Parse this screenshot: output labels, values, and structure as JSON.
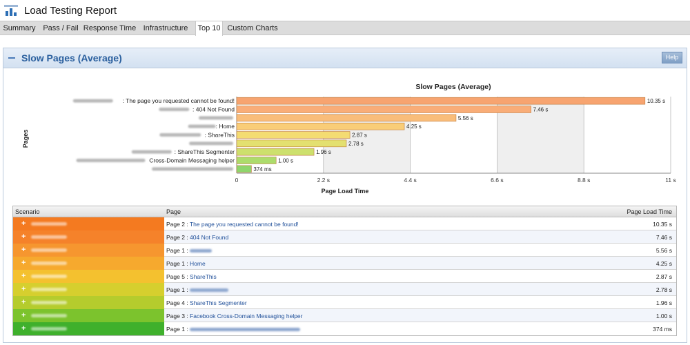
{
  "app": {
    "title": "Load Testing Report"
  },
  "tabs": [
    {
      "label": "Summary",
      "active": false
    },
    {
      "label": "Pass / Fail",
      "active": false
    },
    {
      "label": "Response Time",
      "active": false
    },
    {
      "label": "Infrastructure",
      "active": false
    },
    {
      "label": "Top 10",
      "active": true
    },
    {
      "label": "Custom Charts",
      "active": false
    }
  ],
  "panel": {
    "title": "Slow Pages (Average)",
    "help_label": "Help"
  },
  "chart_data": {
    "type": "bar",
    "orientation": "horizontal",
    "title": "Slow Pages (Average)",
    "xlabel": "Page Load Time",
    "ylabel": "Pages",
    "xlim": [
      0,
      11
    ],
    "x_ticks": [
      "0",
      "2.2 s",
      "4.4 s",
      "6.6 s",
      "8.8 s",
      "11 s"
    ],
    "grid": true,
    "categories": [
      ": The page you requested cannot be found!",
      ": 404 Not Found",
      "",
      ": Home",
      ": ShareThis",
      "",
      ": ShareThis Segmenter",
      " Cross-Domain Messaging helper",
      ""
    ],
    "values": [
      10.35,
      7.46,
      5.56,
      4.25,
      2.87,
      2.78,
      1.96,
      1.0,
      0.374
    ],
    "value_labels": [
      "10.35 s",
      "7.46 s",
      "5.56 s",
      "4.25 s",
      "2.87 s",
      "2.78 s",
      "1.96 s",
      "1.00 s",
      "374 ms"
    ],
    "bar_colors": [
      "#f7a470",
      "#f9ad78",
      "#f9bd7a",
      "#f9cd78",
      "#f4dc72",
      "#e3e070",
      "#cde06d",
      "#acdc6c",
      "#8ed56c"
    ],
    "band_colors": [
      "#ffffff",
      "#efefef"
    ]
  },
  "table": {
    "headers": {
      "scenario": "Scenario",
      "page": "Page",
      "time": "Page Load Time"
    },
    "rows": [
      {
        "page_prefix": "Page 2 :",
        "page_link": "The page you requested cannot be found!",
        "time": "10.35 s",
        "color": "#f47a20"
      },
      {
        "page_prefix": "Page 2 :",
        "page_link": "404 Not Found",
        "time": "7.46 s",
        "color": "#f5822a"
      },
      {
        "page_prefix": "Page 1 :",
        "page_link": "",
        "time": "5.56 s",
        "color": "#f6962f"
      },
      {
        "page_prefix": "Page 1 :",
        "page_link": "Home",
        "time": "4.25 s",
        "color": "#f6a92e"
      },
      {
        "page_prefix": "Page 5 :",
        "page_link": "ShareThis",
        "time": "2.87 s",
        "color": "#f4c12f"
      },
      {
        "page_prefix": "Page 1 :",
        "page_link": "",
        "time": "2.78 s",
        "color": "#d6cf2e"
      },
      {
        "page_prefix": "Page 4 :",
        "page_link": "ShareThis Segmenter",
        "time": "1.96 s",
        "color": "#b5cc2d"
      },
      {
        "page_prefix": "Page 3 :",
        "page_link": "Facebook Cross-Domain Messaging helper",
        "time": "1.00 s",
        "color": "#7cc32d"
      },
      {
        "page_prefix": "Page 1 :",
        "page_link": "",
        "time": "374 ms",
        "color": "#3fb02c"
      }
    ]
  }
}
